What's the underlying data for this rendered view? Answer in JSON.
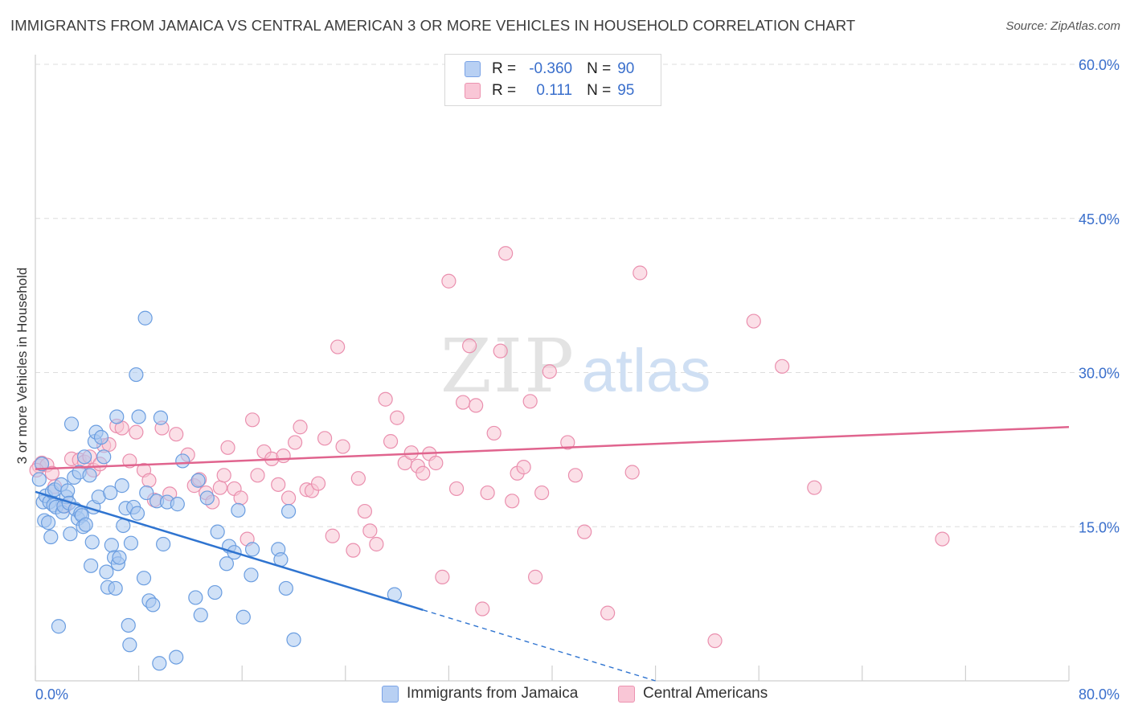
{
  "title": "IMMIGRANTS FROM JAMAICA VS CENTRAL AMERICAN 3 OR MORE VEHICLES IN HOUSEHOLD CORRELATION CHART",
  "source": "Source: ZipAtlas.com",
  "watermark": {
    "zip": "ZIP",
    "atlas": "atlas"
  },
  "legend": {
    "r_label": "R =",
    "n_label": "N =",
    "rows": [
      {
        "r": "-0.360",
        "n": "90",
        "fill": "#b8d0f3",
        "stroke": "#7aa3e6"
      },
      {
        "r": "0.111",
        "n": "95",
        "fill": "#f9c6d6",
        "stroke": "#ec93b0"
      }
    ]
  },
  "colors": {
    "blue_fill": "#a9c8f0",
    "blue_stroke": "#6a9de0",
    "blue_line": "#2f74d0",
    "pink_fill": "#f8c4d4",
    "pink_stroke": "#ea8fae",
    "pink_line": "#e0648e",
    "tick_label": "#3a6fcc",
    "grid": "#dddddd"
  },
  "chart_data": {
    "type": "scatter",
    "title": "IMMIGRANTS FROM JAMAICA VS CENTRAL AMERICAN 3 OR MORE VEHICLES IN HOUSEHOLD CORRELATION CHART",
    "xlabel": "",
    "ylabel": "3 or more Vehicles in Household",
    "xlim": [
      0,
      80
    ],
    "ylim": [
      0,
      60
    ],
    "x_tick_labels": [
      "0.0%",
      "80.0%"
    ],
    "y_ticks": [
      15,
      30,
      45,
      60
    ],
    "y_tick_labels": [
      "15.0%",
      "30.0%",
      "45.0%",
      "60.0%"
    ],
    "grid": true,
    "legend_position": "top-center",
    "series": [
      {
        "name": "Immigrants from Jamaica",
        "trend": {
          "x0": 0,
          "y0": 18.4,
          "x1": 30,
          "y1": 6.9,
          "dashed_to_x": 48
        },
        "points": [
          [
            0.3,
            19.6
          ],
          [
            0.5,
            21.1
          ],
          [
            0.6,
            17.4
          ],
          [
            0.7,
            15.6
          ],
          [
            0.8,
            18.0
          ],
          [
            1.0,
            15.4
          ],
          [
            1.1,
            17.4
          ],
          [
            1.2,
            14.0
          ],
          [
            1.3,
            18.4
          ],
          [
            1.4,
            17.1
          ],
          [
            1.5,
            18.6
          ],
          [
            1.6,
            16.9
          ],
          [
            1.8,
            5.3
          ],
          [
            2.0,
            19.1
          ],
          [
            2.1,
            16.4
          ],
          [
            2.2,
            17.0
          ],
          [
            2.4,
            17.9
          ],
          [
            2.5,
            18.5
          ],
          [
            2.6,
            17.3
          ],
          [
            2.7,
            14.3
          ],
          [
            2.8,
            25.0
          ],
          [
            3.0,
            19.8
          ],
          [
            3.1,
            16.7
          ],
          [
            3.3,
            15.8
          ],
          [
            3.4,
            20.3
          ],
          [
            3.5,
            16.3
          ],
          [
            3.6,
            16.1
          ],
          [
            3.7,
            15.0
          ],
          [
            3.8,
            21.8
          ],
          [
            3.9,
            15.2
          ],
          [
            4.2,
            20.0
          ],
          [
            4.3,
            11.2
          ],
          [
            4.4,
            13.5
          ],
          [
            4.5,
            16.9
          ],
          [
            4.6,
            23.3
          ],
          [
            4.7,
            24.2
          ],
          [
            4.9,
            17.9
          ],
          [
            5.1,
            23.7
          ],
          [
            5.3,
            21.8
          ],
          [
            5.5,
            10.6
          ],
          [
            5.6,
            9.1
          ],
          [
            5.8,
            18.3
          ],
          [
            5.9,
            13.2
          ],
          [
            6.1,
            12.0
          ],
          [
            6.2,
            9.0
          ],
          [
            6.3,
            25.7
          ],
          [
            6.4,
            11.4
          ],
          [
            6.5,
            12.0
          ],
          [
            6.7,
            19.0
          ],
          [
            6.8,
            15.1
          ],
          [
            7.0,
            16.8
          ],
          [
            7.2,
            5.4
          ],
          [
            7.3,
            3.5
          ],
          [
            7.4,
            13.4
          ],
          [
            7.6,
            16.9
          ],
          [
            7.8,
            29.8
          ],
          [
            7.9,
            16.3
          ],
          [
            8.0,
            25.7
          ],
          [
            8.4,
            10.0
          ],
          [
            8.5,
            35.3
          ],
          [
            8.6,
            18.3
          ],
          [
            8.8,
            7.8
          ],
          [
            9.1,
            7.4
          ],
          [
            9.4,
            17.5
          ],
          [
            9.6,
            1.7
          ],
          [
            9.7,
            25.6
          ],
          [
            9.9,
            13.3
          ],
          [
            10.2,
            17.4
          ],
          [
            10.9,
            2.3
          ],
          [
            11.0,
            17.2
          ],
          [
            11.4,
            21.4
          ],
          [
            12.4,
            8.1
          ],
          [
            12.6,
            19.5
          ],
          [
            12.8,
            6.4
          ],
          [
            13.3,
            17.8
          ],
          [
            13.9,
            8.6
          ],
          [
            14.1,
            14.5
          ],
          [
            14.8,
            11.4
          ],
          [
            15.0,
            13.1
          ],
          [
            15.4,
            12.5
          ],
          [
            15.7,
            16.6
          ],
          [
            16.1,
            6.2
          ],
          [
            16.7,
            10.3
          ],
          [
            16.8,
            12.8
          ],
          [
            18.8,
            12.8
          ],
          [
            19.0,
            11.8
          ],
          [
            19.4,
            9.0
          ],
          [
            19.6,
            16.5
          ],
          [
            20.0,
            4.0
          ],
          [
            27.8,
            8.4
          ]
        ]
      },
      {
        "name": "Central Americans",
        "trend": {
          "x0": 0,
          "y0": 20.6,
          "x1": 80,
          "y1": 24.7
        },
        "points": [
          [
            0.3,
            20.9
          ],
          [
            0.5,
            21.2
          ],
          [
            0.9,
            21.0
          ],
          [
            1.3,
            20.2
          ],
          [
            1.5,
            18.9
          ],
          [
            2.3,
            17.0
          ],
          [
            2.8,
            21.6
          ],
          [
            3.4,
            21.5
          ],
          [
            3.8,
            21.3
          ],
          [
            4.2,
            21.8
          ],
          [
            4.5,
            20.5
          ],
          [
            5.0,
            21.1
          ],
          [
            5.3,
            22.9
          ],
          [
            5.7,
            23.0
          ],
          [
            6.3,
            24.8
          ],
          [
            6.7,
            24.6
          ],
          [
            7.3,
            21.4
          ],
          [
            7.8,
            24.2
          ],
          [
            8.4,
            20.5
          ],
          [
            8.8,
            19.5
          ],
          [
            9.2,
            17.6
          ],
          [
            9.8,
            24.6
          ],
          [
            10.4,
            18.2
          ],
          [
            10.9,
            24.0
          ],
          [
            11.8,
            22.0
          ],
          [
            12.3,
            19.0
          ],
          [
            12.7,
            19.6
          ],
          [
            13.2,
            18.3
          ],
          [
            13.7,
            17.4
          ],
          [
            14.3,
            18.8
          ],
          [
            14.6,
            20.0
          ],
          [
            14.9,
            22.7
          ],
          [
            15.4,
            18.7
          ],
          [
            15.9,
            17.8
          ],
          [
            16.4,
            13.8
          ],
          [
            16.8,
            25.4
          ],
          [
            17.2,
            20.0
          ],
          [
            17.7,
            22.3
          ],
          [
            18.3,
            21.6
          ],
          [
            18.8,
            19.1
          ],
          [
            19.2,
            21.9
          ],
          [
            19.6,
            17.8
          ],
          [
            20.1,
            23.2
          ],
          [
            20.5,
            24.7
          ],
          [
            21.0,
            18.6
          ],
          [
            21.4,
            18.5
          ],
          [
            21.9,
            19.2
          ],
          [
            22.4,
            23.6
          ],
          [
            23.0,
            14.1
          ],
          [
            23.4,
            32.5
          ],
          [
            23.8,
            22.8
          ],
          [
            24.6,
            12.7
          ],
          [
            25.0,
            19.7
          ],
          [
            25.5,
            16.5
          ],
          [
            25.9,
            14.6
          ],
          [
            26.4,
            13.3
          ],
          [
            27.1,
            27.4
          ],
          [
            27.5,
            23.3
          ],
          [
            28.0,
            25.6
          ],
          [
            28.6,
            21.2
          ],
          [
            29.1,
            22.2
          ],
          [
            29.6,
            20.9
          ],
          [
            30.0,
            20.2
          ],
          [
            30.5,
            22.1
          ],
          [
            31.0,
            21.2
          ],
          [
            31.5,
            10.1
          ],
          [
            32.0,
            38.9
          ],
          [
            32.6,
            18.7
          ],
          [
            33.1,
            27.1
          ],
          [
            33.6,
            32.6
          ],
          [
            34.1,
            26.8
          ],
          [
            34.6,
            7.0
          ],
          [
            35.0,
            18.3
          ],
          [
            35.5,
            24.1
          ],
          [
            36.0,
            32.1
          ],
          [
            36.4,
            41.6
          ],
          [
            36.9,
            17.5
          ],
          [
            37.3,
            20.2
          ],
          [
            37.8,
            20.8
          ],
          [
            38.3,
            27.2
          ],
          [
            38.7,
            10.1
          ],
          [
            39.2,
            18.3
          ],
          [
            39.8,
            30.1
          ],
          [
            41.2,
            23.2
          ],
          [
            41.8,
            20.0
          ],
          [
            42.5,
            14.5
          ],
          [
            44.3,
            6.6
          ],
          [
            46.2,
            20.3
          ],
          [
            46.8,
            39.7
          ],
          [
            52.6,
            3.9
          ],
          [
            55.6,
            35.0
          ],
          [
            57.8,
            30.6
          ],
          [
            60.3,
            18.8
          ],
          [
            70.2,
            13.8
          ],
          [
            0.1,
            20.5
          ]
        ]
      }
    ]
  },
  "bottom_legend": [
    {
      "label": "Immigrants from Jamaica",
      "fill": "#b8d0f3",
      "stroke": "#7aa3e6"
    },
    {
      "label": "Central Americans",
      "fill": "#f9c6d6",
      "stroke": "#ec93b0"
    }
  ]
}
